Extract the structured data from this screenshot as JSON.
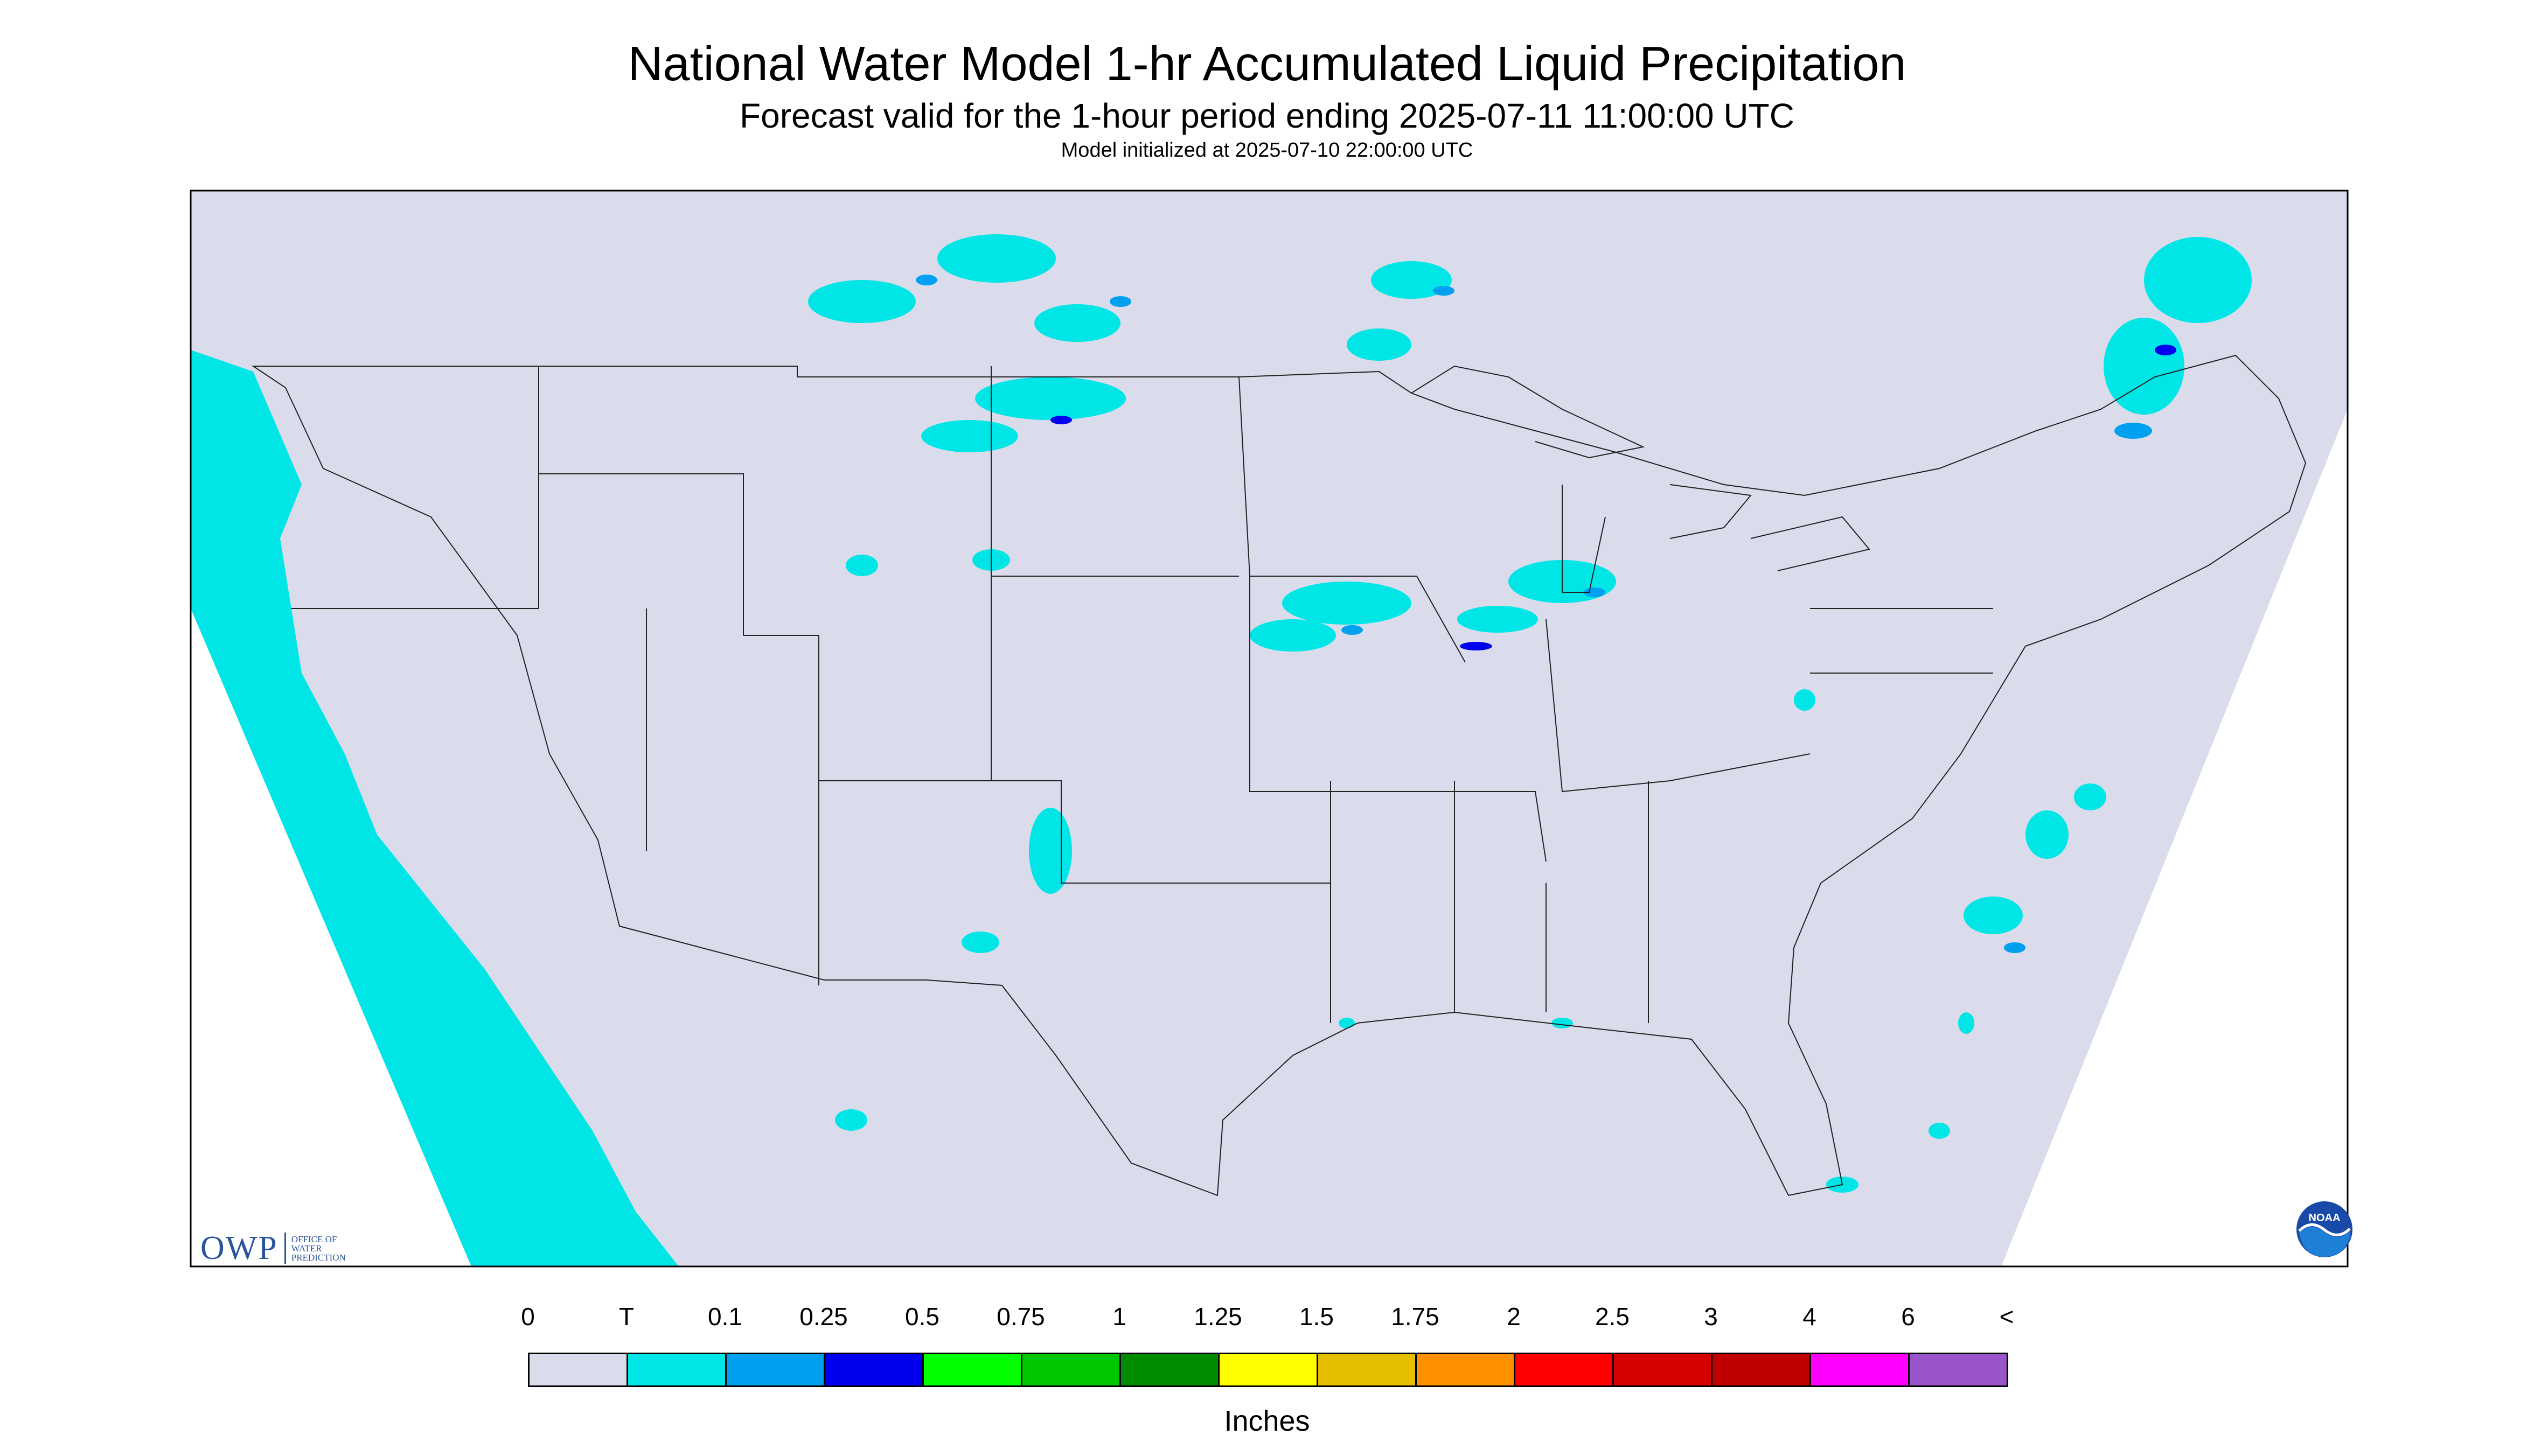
{
  "header": {
    "title": "National Water Model 1-hr Accumulated Liquid Precipitation",
    "subtitle": "Forecast valid for the 1-hour period ending 2025-07-11 11:00:00 UTC",
    "init": "Model initialized at 2025-07-10 22:00:00 UTC"
  },
  "logos": {
    "owp_mark": "OWP",
    "owp_line1": "OFFICE OF",
    "owp_line2": "WATER",
    "owp_line3": "PREDICTION",
    "noaa_text": "NOAA",
    "noaa_icon": "noaa-logo-icon"
  },
  "legend": {
    "labels": [
      "0",
      "T",
      "0.1",
      "0.25",
      "0.5",
      "0.75",
      "1",
      "1.25",
      "1.5",
      "1.75",
      "2",
      "2.5",
      "3",
      "4",
      "6",
      "<"
    ],
    "colors": [
      "#dadcec",
      "#00e6e6",
      "#00a0f0",
      "#0000f0",
      "#00ff00",
      "#00c800",
      "#008c00",
      "#ffff00",
      "#e6be00",
      "#ff9100",
      "#ff0000",
      "#d70000",
      "#c00000",
      "#ff00ff",
      "#9955c9"
    ],
    "units": "Inches"
  },
  "map": {
    "background_color": "#dadcec",
    "precip_light_color": "#00e6e6",
    "precip_moderate_color": "#00a0f0",
    "precip_heavy_color": "#0000f0"
  }
}
